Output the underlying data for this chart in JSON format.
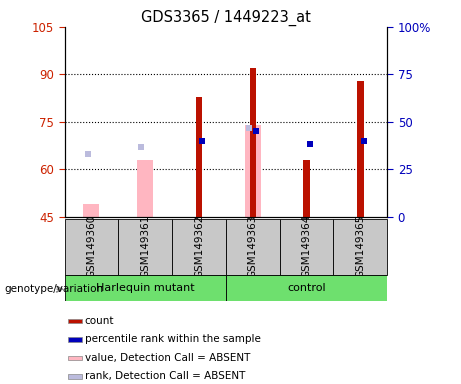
{
  "title": "GDS3365 / 1449223_at",
  "samples": [
    "GSM149360",
    "GSM149361",
    "GSM149362",
    "GSM149363",
    "GSM149364",
    "GSM149365"
  ],
  "ylim_left": [
    45,
    105
  ],
  "ylim_right": [
    0,
    100
  ],
  "yticks_left": [
    45,
    60,
    75,
    90,
    105
  ],
  "yticks_right": [
    0,
    25,
    50,
    75,
    100
  ],
  "left_tick_color": "#CC2200",
  "right_tick_color": "#0000BB",
  "count_color": "#BB1100",
  "percentile_color": "#0000BB",
  "absent_value_color": "#FFB6C1",
  "absent_rank_color": "#BBBBDD",
  "counts": [
    null,
    null,
    83,
    92,
    63,
    88
  ],
  "percentiles": [
    null,
    null,
    69,
    72,
    68,
    69
  ],
  "absent_values": [
    49,
    63,
    null,
    74,
    null,
    null
  ],
  "absent_ranks": [
    65,
    67,
    null,
    73,
    null,
    null
  ],
  "sample_bg": "#C8C8C8",
  "harlequin_color": "#6EE06E",
  "control_color": "#6EE06E",
  "genotype_label": "genotype/variation",
  "group_boundary": 2.5,
  "legend_items": [
    {
      "label": "count",
      "color": "#BB1100"
    },
    {
      "label": "percentile rank within the sample",
      "color": "#0000BB"
    },
    {
      "label": "value, Detection Call = ABSENT",
      "color": "#FFB6C1"
    },
    {
      "label": "rank, Detection Call = ABSENT",
      "color": "#BBBBDD"
    }
  ]
}
